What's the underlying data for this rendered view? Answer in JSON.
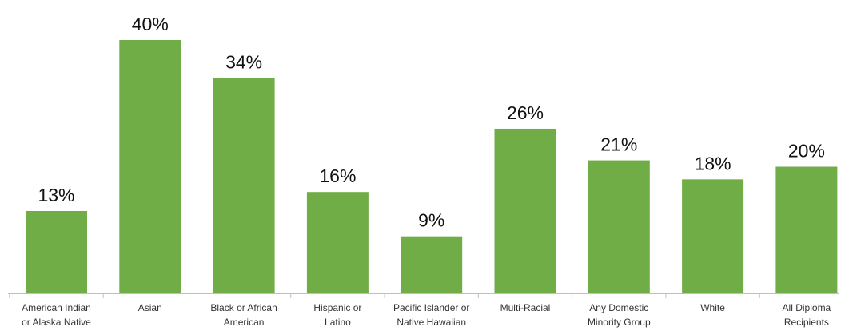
{
  "chart_data": {
    "type": "bar",
    "categories": [
      "American Indian\nor Alaska Native",
      "Asian",
      "Black or African\nAmerican",
      "Hispanic or\nLatino",
      "Pacific Islander or\nNative Hawaiian",
      "Multi-Racial",
      "Any Domestic\nMinority Group",
      "White",
      "All Diploma\nRecipients"
    ],
    "values": [
      13,
      40,
      34,
      16,
      9,
      26,
      21,
      18,
      20
    ],
    "value_labels": [
      "13%",
      "40%",
      "34%",
      "16%",
      "9%",
      "26%",
      "21%",
      "18%",
      "20%"
    ],
    "color": "#70ad47"
  }
}
